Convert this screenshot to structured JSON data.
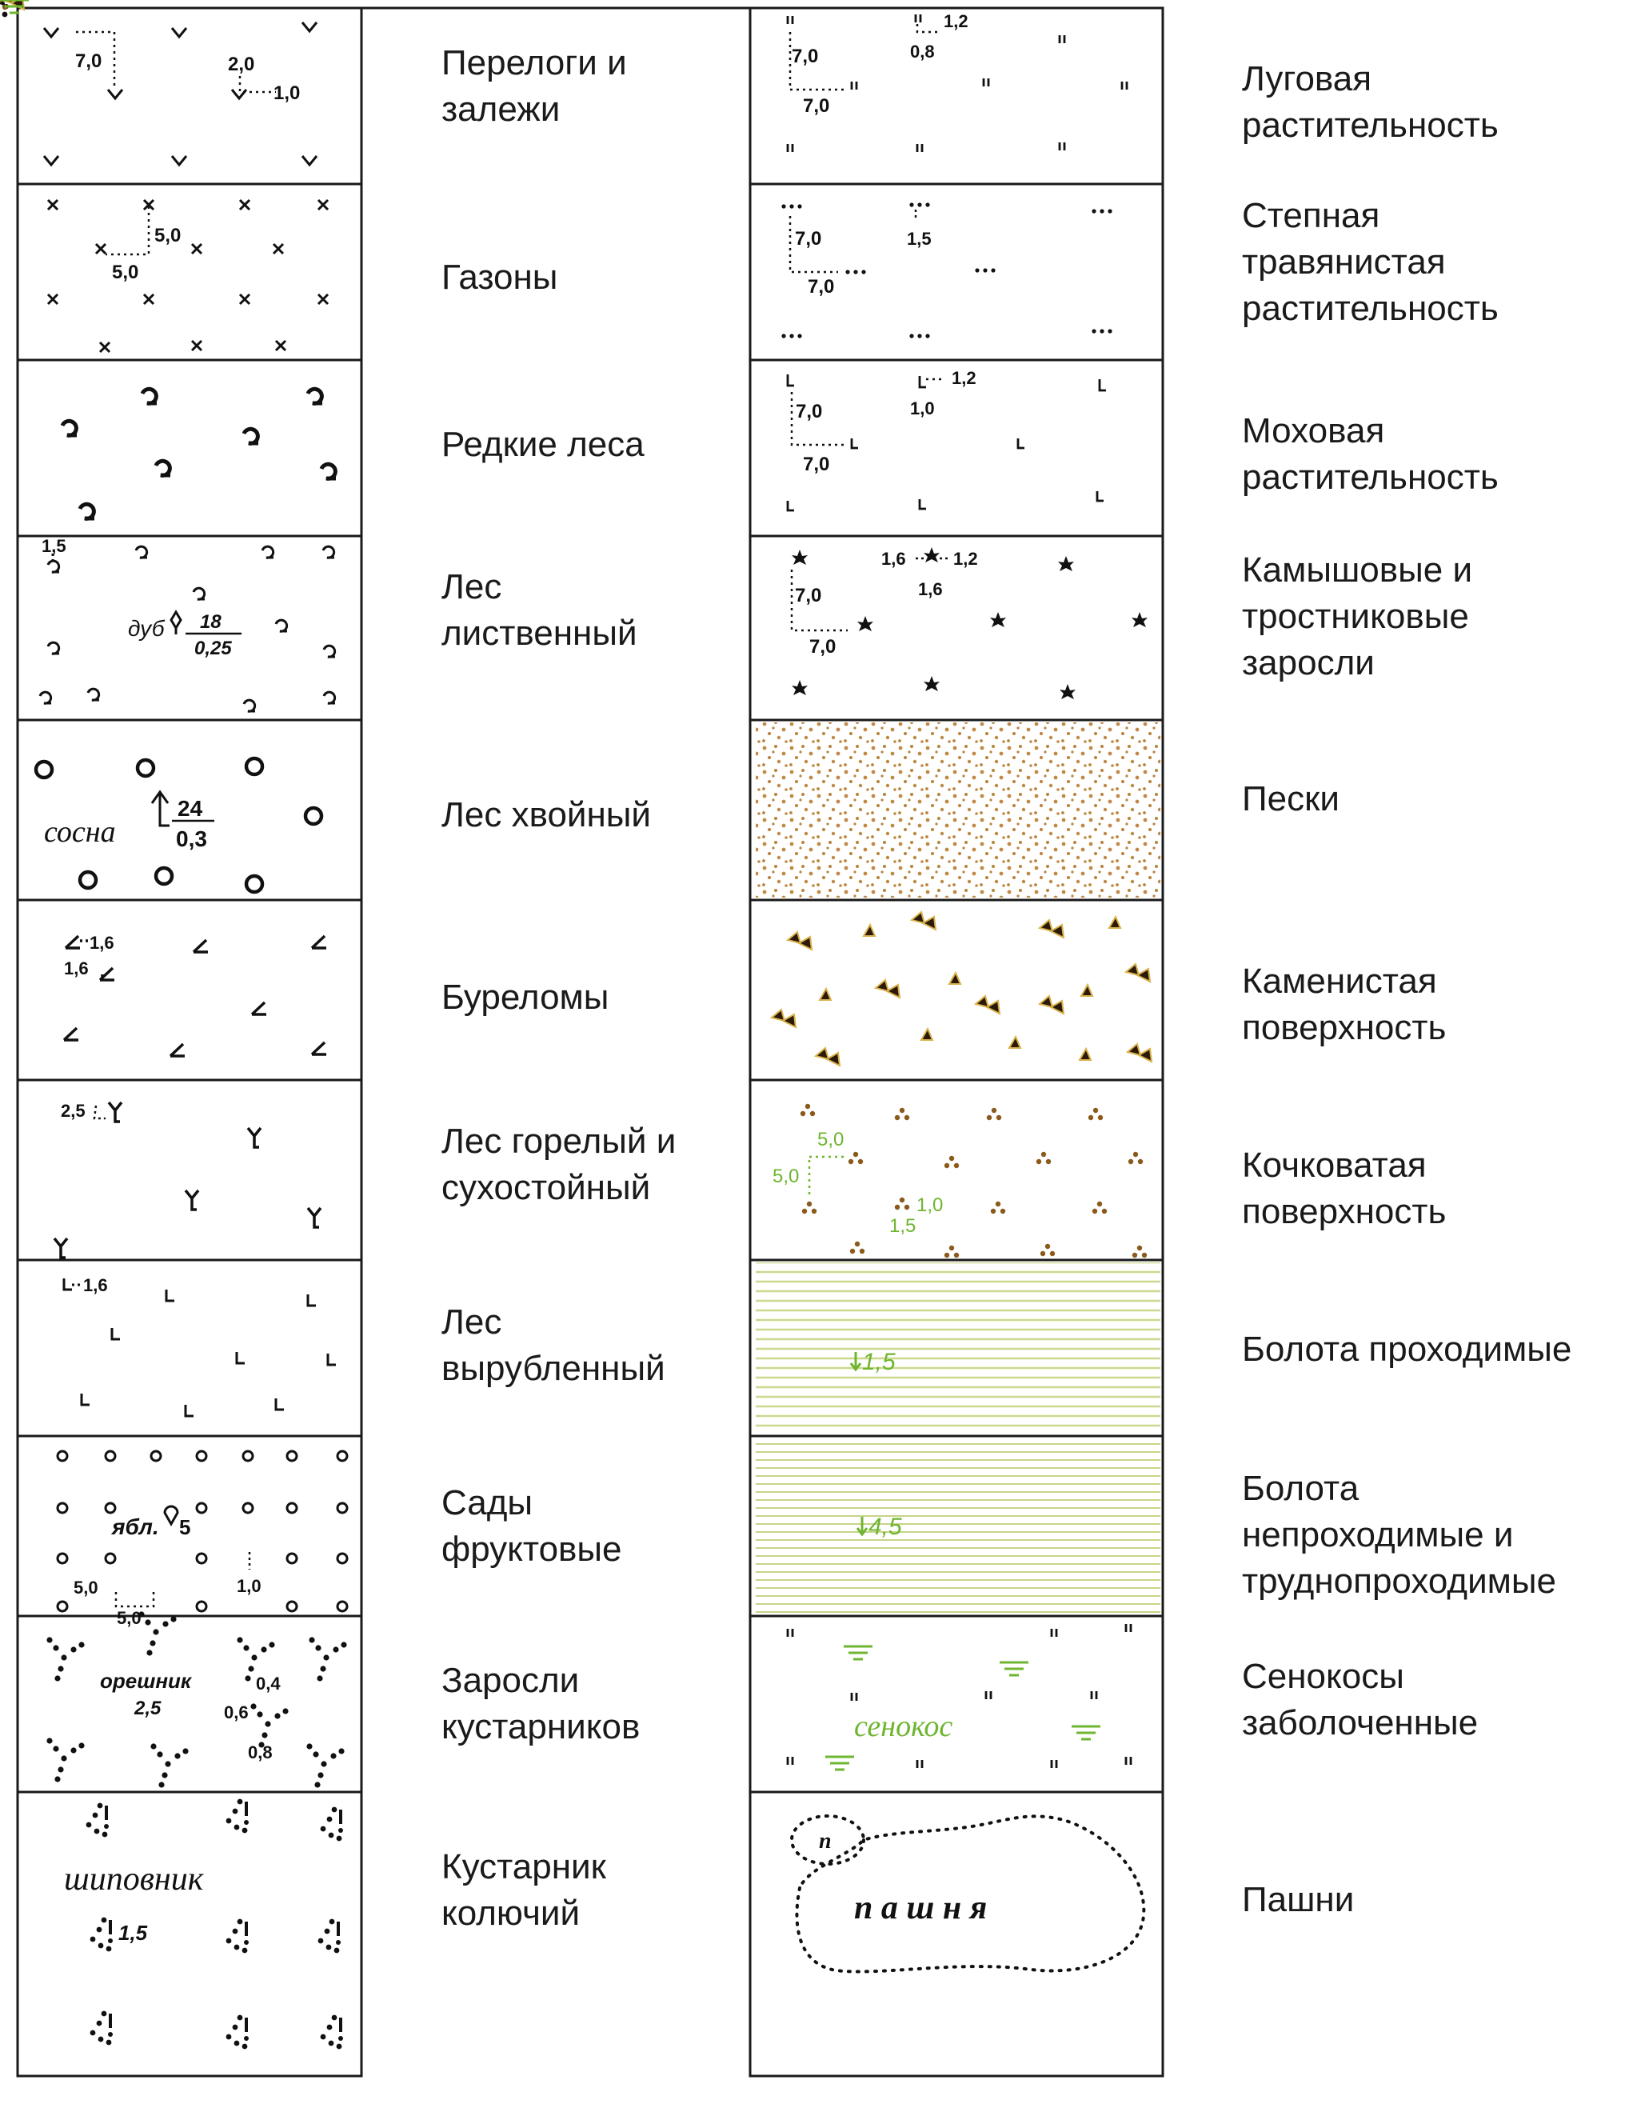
{
  "left_column": [
    {
      "label": "Перелоги и\nзалежи",
      "figs": [
        "7,0",
        "2,0",
        "1,0"
      ]
    },
    {
      "label": "Газоны",
      "figs": [
        "5,0",
        "5,0"
      ]
    },
    {
      "label": "Редкие леса",
      "figs": []
    },
    {
      "label": "Лес\nлиственный",
      "figs": [
        "1,5",
        "дуб",
        "18",
        "0,25"
      ]
    },
    {
      "label": "Лес хвойный",
      "figs": [
        "сосна",
        "24",
        "0,3"
      ]
    },
    {
      "label": "Буреломы",
      "figs": [
        "1,6",
        "1,6"
      ]
    },
    {
      "label": "Лес горелый и\nсухостойный",
      "figs": [
        "2,5"
      ]
    },
    {
      "label": "Лес\nвырубленный",
      "figs": [
        "1,6"
      ]
    },
    {
      "label": "Сады\nфруктовые",
      "figs": [
        "ябл.",
        "5",
        "5,0",
        "5,0",
        "1,0"
      ]
    },
    {
      "label": "Заросли\nкустарников",
      "figs": [
        "орешник",
        "2,5",
        "0,4",
        "0,6",
        "0,8"
      ]
    },
    {
      "label": "Кустарник\nколючий",
      "figs": [
        "шиповник",
        "1,5"
      ]
    }
  ],
  "right_column": [
    {
      "label": "Луговая\nрастительность",
      "figs": [
        "1,2",
        "0,8",
        "7,0",
        "7,0"
      ]
    },
    {
      "label": "Степная\nтравянистая\nрастительность",
      "figs": [
        "7,0",
        "1,5",
        "7,0"
      ]
    },
    {
      "label": "Моховая\nрастительность",
      "figs": [
        "1,2",
        "1,0",
        "7,0",
        "7,0"
      ]
    },
    {
      "label": "Камышовые и\nтростниковые\nзаросли",
      "figs": [
        "1,6",
        "1,2",
        "1,6",
        "7,0",
        "7,0"
      ]
    },
    {
      "label": "Пески",
      "figs": []
    },
    {
      "label": "Каменистая\nповерхность",
      "figs": []
    },
    {
      "label": "Кочковатая\nповерхность",
      "figs": [
        "5,0",
        "5,0",
        "1,0",
        "1,5"
      ]
    },
    {
      "label": "Болота проходимые",
      "figs": [
        "1,5"
      ]
    },
    {
      "label": "Болота\nнепроходимые и\nтруднопроходимые",
      "figs": [
        "4,5"
      ]
    },
    {
      "label": "Сенокосы\nзаболоченные",
      "figs": [
        "сенокос"
      ]
    },
    {
      "label": "Пашни",
      "figs": [
        "п",
        "п а ш н я"
      ]
    }
  ],
  "colors": {
    "ink": "#111111",
    "sand": "#b8833a",
    "stone": "#2b1a0a",
    "hummock": "#8a5a1c",
    "marsh_green": "#6fb52f",
    "marsh_line": "#c9d68a"
  }
}
